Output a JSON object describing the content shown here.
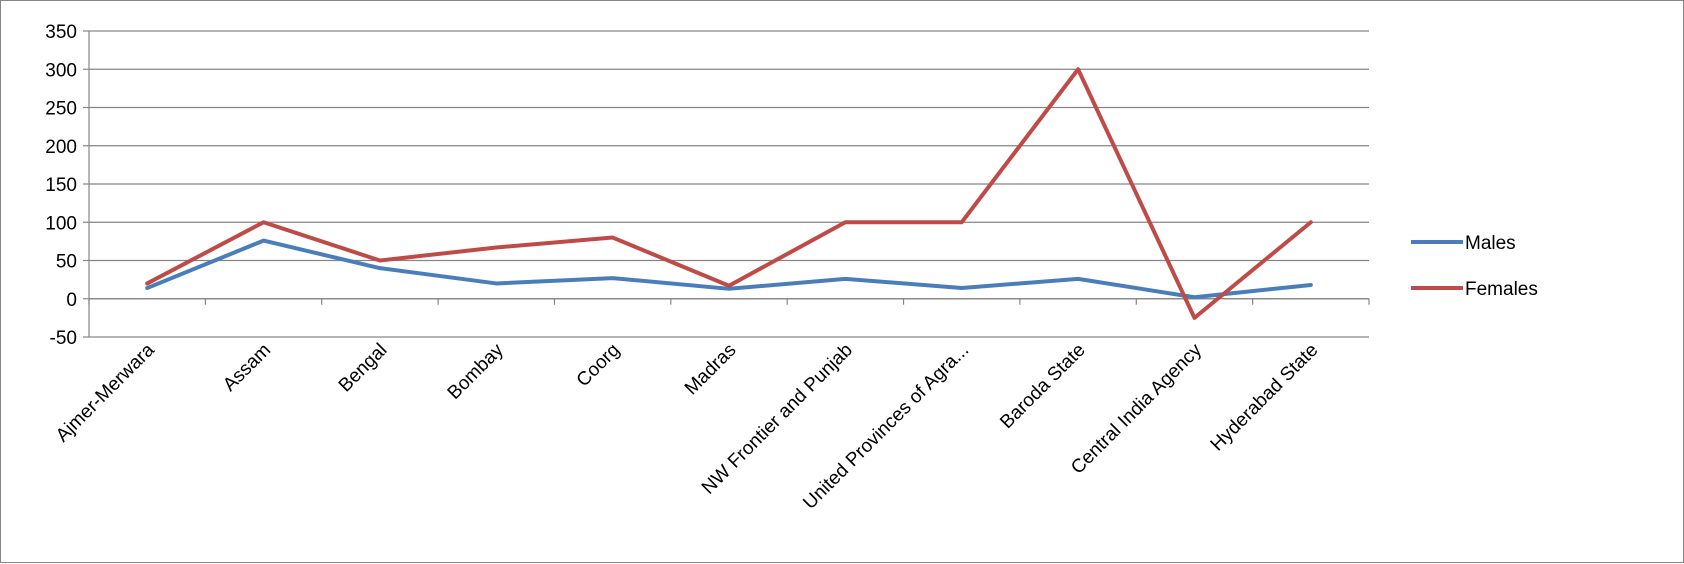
{
  "chart_data": {
    "type": "line",
    "title": "",
    "xlabel": "",
    "ylabel": "",
    "categories": [
      "Ajmer-Merwara",
      "Assam",
      "Bengal",
      "Bombay",
      "Coorg",
      "Madras",
      "NW Frontier and Punjab",
      "United Provinces of Agra...",
      "Baroda State",
      "Central India Agency",
      "Hyderabad State"
    ],
    "series": [
      {
        "name": "Males",
        "color": "#4a7ebb",
        "values": [
          14,
          76,
          40,
          20,
          27,
          13,
          26,
          14,
          26,
          2,
          18
        ]
      },
      {
        "name": "Females",
        "color": "#be4b48",
        "values": [
          20,
          100,
          50,
          67,
          80,
          17,
          100,
          100,
          300,
          -25,
          100
        ]
      }
    ],
    "ylim": [
      -50,
      350
    ],
    "yticks": [
      "350",
      "300",
      "250",
      "200",
      "150",
      "100",
      "50",
      "0",
      "-50"
    ],
    "grid": true,
    "legend_position": "right"
  }
}
